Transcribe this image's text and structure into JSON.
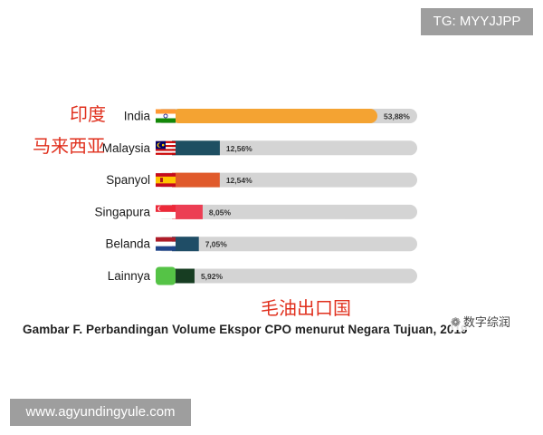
{
  "badge": {
    "text": "TG: MYYJJPP"
  },
  "watermark": {
    "url": "www.agyundingyule.com"
  },
  "wechat": {
    "icon": "wechat-icon",
    "text": "数字综润"
  },
  "annotations": {
    "india": "印度",
    "malaysia": "马来西亚",
    "bottom": "毛油出口国"
  },
  "caption": "Gambar F.  Perbandingan Volume Ekspor CPO menurut Negara Tujuan, 2019",
  "colors": {
    "track": "#d4d4d4",
    "india": "#f4a332",
    "malaysia": "#1e4f62",
    "spanyol": "#e05a2b",
    "singapura": "#ec3e53",
    "belanda": "#1f4d66",
    "lainnya": "#173d22",
    "annotation": "#e0301e"
  },
  "chart_data": {
    "type": "bar",
    "orientation": "horizontal",
    "categories": [
      "India",
      "Malaysia",
      "Spanyol",
      "Singapura",
      "Belanda",
      "Lainnya"
    ],
    "values": [
      53.88,
      12.56,
      12.54,
      8.05,
      7.05,
      5.92
    ],
    "data_labels": [
      "53,88%",
      "12,56%",
      "12,54%",
      "8,05%",
      "7,05%",
      "5,92%"
    ],
    "flags": [
      "india-flag-icon",
      "malaysia-flag-icon",
      "spain-flag-icon",
      "singapore-flag-icon",
      "netherlands-flag-icon",
      "other-flag-icon"
    ],
    "title": "Gambar F.  Perbandingan Volume Ekspor CPO menurut Negara Tujuan, 2019",
    "xlabel": "",
    "ylabel": "",
    "xlim": [
      0,
      60
    ],
    "grid": false,
    "legend": "none"
  }
}
